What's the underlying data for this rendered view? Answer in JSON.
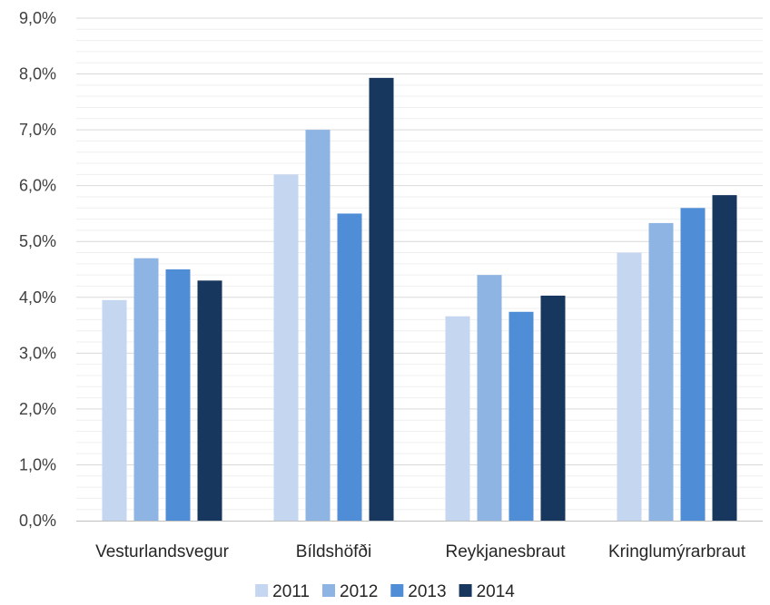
{
  "chart_data": {
    "type": "bar",
    "categories": [
      "Vesturlandsvegur",
      "Bíldshöfði",
      "Reykjanesbraut",
      "Kringlumýrarbraut"
    ],
    "series": [
      {
        "name": "2011",
        "color": "#c5d6f0",
        "values": [
          3.95,
          6.2,
          3.66,
          4.8
        ]
      },
      {
        "name": "2012",
        "color": "#8eb4e3",
        "values": [
          4.7,
          7.0,
          4.4,
          5.33
        ]
      },
      {
        "name": "2013",
        "color": "#4f8dd6",
        "values": [
          4.5,
          5.5,
          3.74,
          5.6
        ]
      },
      {
        "name": "2014",
        "color": "#17375e",
        "values": [
          4.3,
          7.93,
          4.03,
          5.83
        ]
      }
    ],
    "ylim": [
      0,
      9
    ],
    "yticks": [
      "0,0%",
      "1,0%",
      "2,0%",
      "3,0%",
      "4,0%",
      "5,0%",
      "6,0%",
      "7,0%",
      "8,0%",
      "9,0%"
    ],
    "grid": true,
    "legend": "bottom"
  }
}
